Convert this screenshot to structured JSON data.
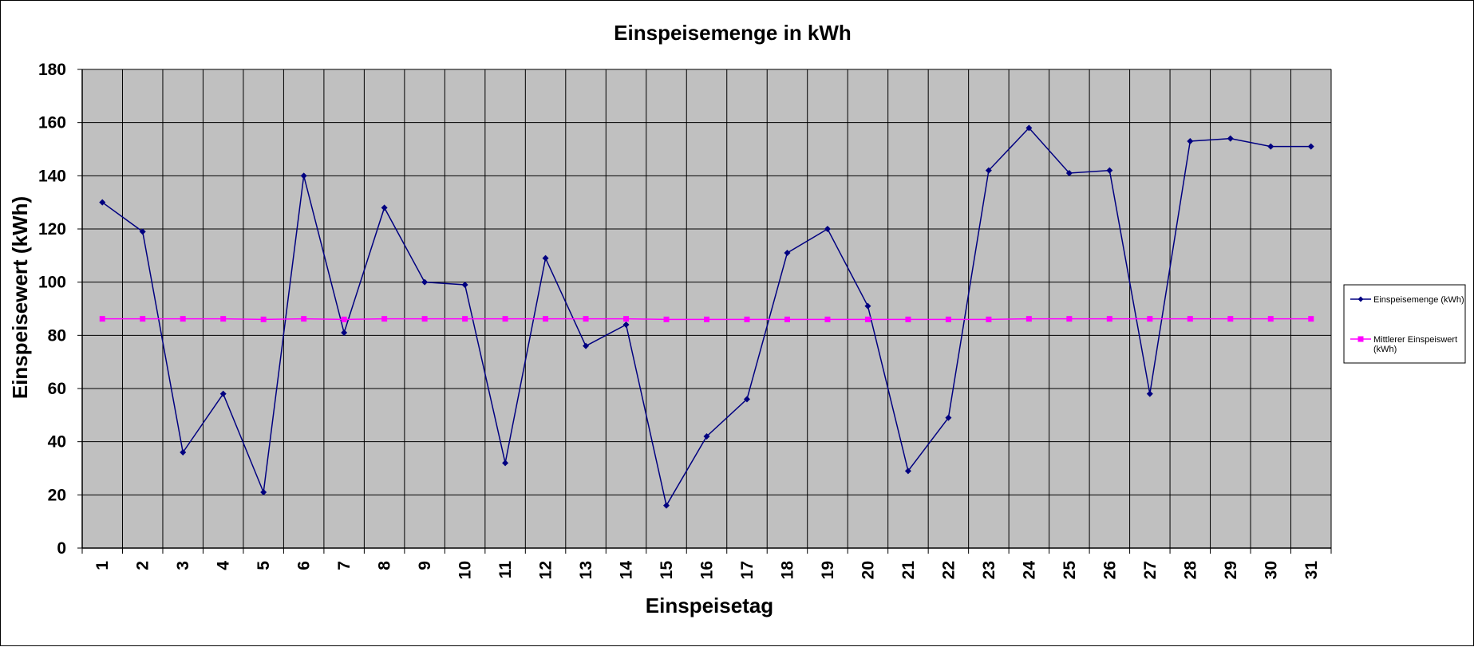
{
  "chart_data": {
    "type": "line",
    "title": "Einspeisemenge in kWh",
    "xlabel": "Einspeisetag",
    "ylabel": "Einspeisewert  (kWh)",
    "ylim": [
      0,
      180
    ],
    "yticks": [
      0,
      20,
      40,
      60,
      80,
      100,
      120,
      140,
      160,
      180
    ],
    "grid": true,
    "legend_position": "right",
    "categories": [
      "1",
      "2",
      "3",
      "4",
      "5",
      "6",
      "7",
      "8",
      "9",
      "10",
      "11",
      "12",
      "13",
      "14",
      "15",
      "16",
      "17",
      "18",
      "19",
      "20",
      "21",
      "22",
      "23",
      "24",
      "25",
      "26",
      "27",
      "28",
      "29",
      "30",
      "31"
    ],
    "plot_background": "#c0c0c0",
    "series": [
      {
        "name": "Einspeisemenge (kWh)",
        "color": "#000080",
        "marker": "diamond",
        "values": [
          130,
          119,
          36,
          58,
          21,
          140,
          81,
          128,
          100,
          99,
          32,
          109,
          76,
          84,
          16,
          42,
          56,
          111,
          120,
          91,
          29,
          49,
          142,
          158,
          141,
          142,
          58,
          153,
          154,
          151,
          151
        ]
      },
      {
        "name": "Mittlerer Einspeiswert (kWh)",
        "legend_lines": [
          "Mittlerer Einspeiswert",
          "(kWh)"
        ],
        "color": "#ff00ff",
        "marker": "square",
        "values": [
          86.2,
          86.2,
          86.2,
          86.2,
          86.0,
          86.2,
          86.0,
          86.2,
          86.2,
          86.2,
          86.2,
          86.2,
          86.2,
          86.2,
          86.0,
          86.0,
          86.0,
          86.0,
          86.0,
          86.0,
          86.0,
          86.0,
          86.0,
          86.2,
          86.2,
          86.2,
          86.2,
          86.2,
          86.2,
          86.2,
          86.2
        ]
      }
    ]
  }
}
